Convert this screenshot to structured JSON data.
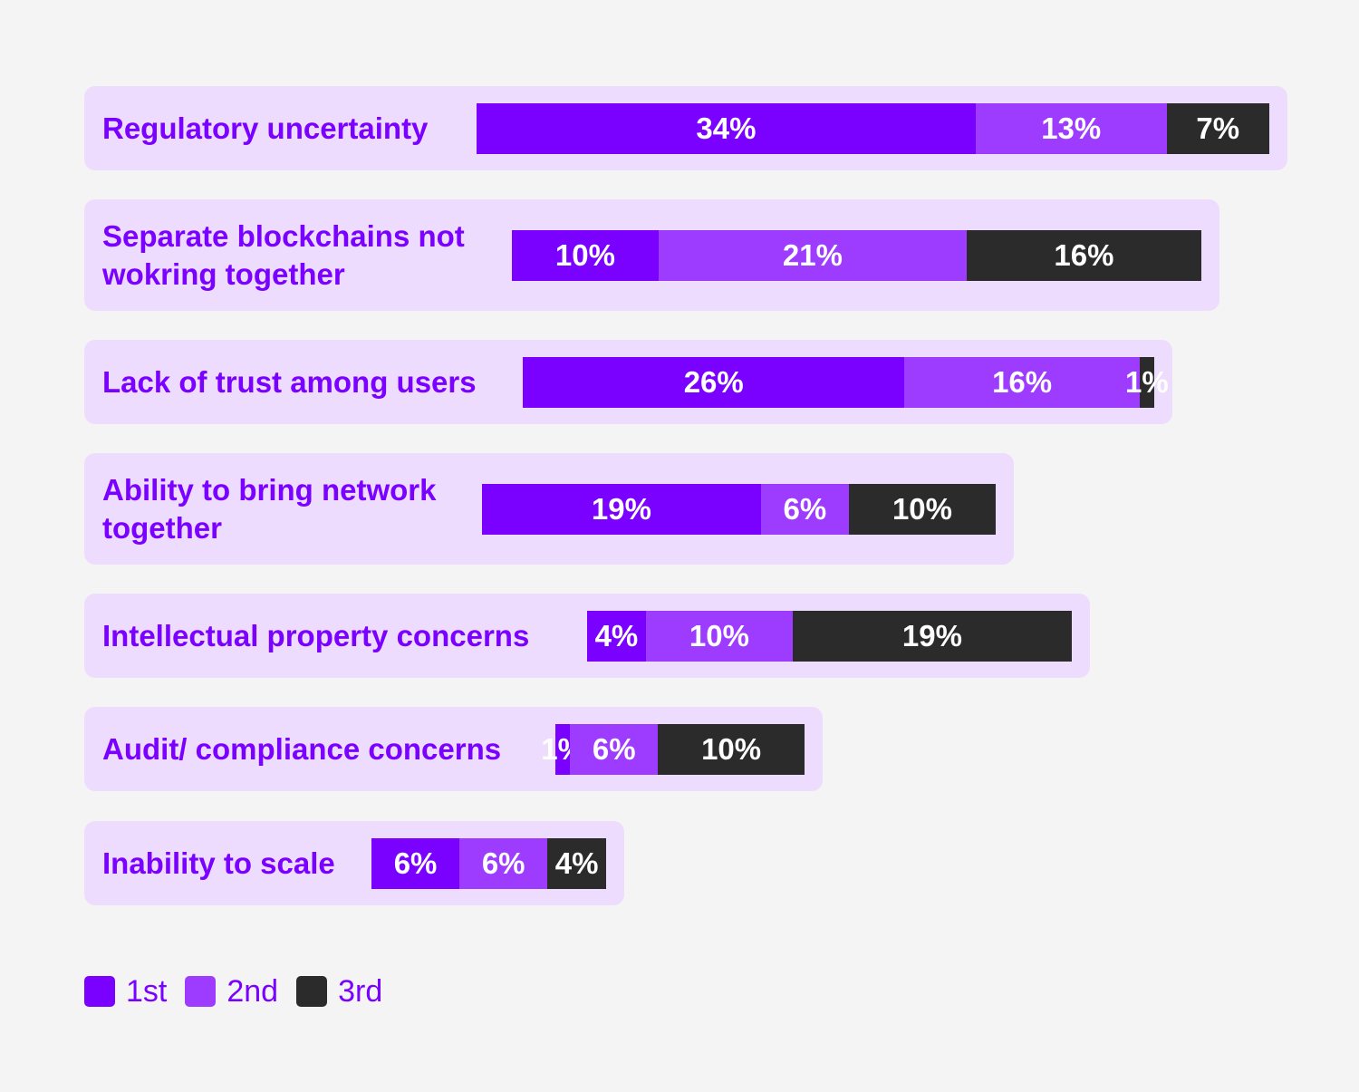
{
  "chart_data": {
    "type": "bar",
    "orientation": "horizontal",
    "stacked": true,
    "categories": [
      "Regulatory uncertainty",
      "Separate blockchains not\nwokring together",
      "Lack of trust among users",
      "Ability to bring network\ntogether",
      "Intellectual property concerns",
      "Audit/ compliance concerns",
      "Inability to scale"
    ],
    "series": [
      {
        "name": "1st",
        "color": "#7a00ff",
        "values": [
          34,
          10,
          26,
          19,
          4,
          1,
          6
        ],
        "labels": [
          "34%",
          "10%",
          "26%",
          "19%",
          "4%",
          "1%",
          "6%"
        ]
      },
      {
        "name": "2nd",
        "color": "#9d3cff",
        "values": [
          13,
          21,
          16,
          6,
          10,
          6,
          6
        ],
        "labels": [
          "13%",
          "21%",
          "16%",
          "6%",
          "10%",
          "6%",
          "6%"
        ]
      },
      {
        "name": "3rd",
        "color": "#2b2b2b",
        "values": [
          7,
          16,
          1,
          10,
          19,
          10,
          4
        ],
        "labels": [
          "7%",
          "16%",
          "1%",
          "10%",
          "19%",
          "10%",
          "4%"
        ]
      }
    ],
    "grid": false,
    "legend": "bottom-left"
  },
  "colors": {
    "background": "#f4f4f4",
    "row_background": "#eddcfd",
    "label_text": "#7a00ff"
  }
}
